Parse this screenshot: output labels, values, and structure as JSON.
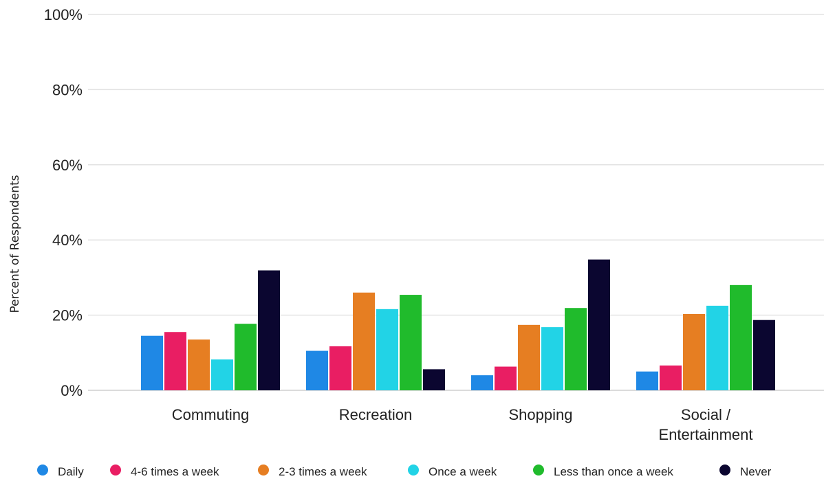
{
  "chart_data": {
    "type": "bar",
    "title": "",
    "xlabel": "",
    "ylabel": "Percent of Respondents",
    "ylim": [
      0,
      100
    ],
    "yticks": [
      "0%",
      "20%",
      "40%",
      "60%",
      "80%",
      "100%"
    ],
    "ytick_values": [
      0,
      20,
      40,
      60,
      80,
      100
    ],
    "grid": true,
    "legend_position": "bottom",
    "categories": [
      [
        "Commuting"
      ],
      [
        "Recreation"
      ],
      [
        "Shopping"
      ],
      [
        "Social /",
        "Entertainment"
      ]
    ],
    "series": [
      {
        "name": "Daily",
        "color": "#1f88e5",
        "values": [
          14.5,
          10.5,
          4.0,
          5.0
        ]
      },
      {
        "name": "4-6 times a week",
        "color": "#e91e63",
        "values": [
          15.5,
          11.7,
          6.3,
          6.6
        ]
      },
      {
        "name": "2-3 times a week",
        "color": "#e67e22",
        "values": [
          13.5,
          26.0,
          17.4,
          20.3
        ]
      },
      {
        "name": "Once a week",
        "color": "#22d3e6",
        "values": [
          8.2,
          21.6,
          16.8,
          22.5
        ]
      },
      {
        "name": "Less than once a week",
        "color": "#20bb2c",
        "values": [
          17.7,
          25.4,
          21.9,
          28.0
        ]
      },
      {
        "name": "Never",
        "color": "#0b0630",
        "values": [
          31.9,
          5.6,
          34.8,
          18.7
        ]
      }
    ]
  }
}
